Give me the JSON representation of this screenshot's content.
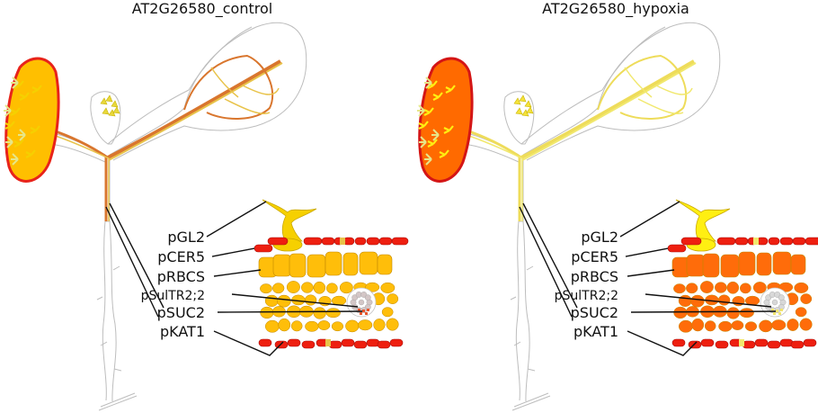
{
  "panels": [
    {
      "title": "AT2G26580_control",
      "colors": {
        "leaf_blade": "#ffbf00",
        "leaf_outline": "#e8231a",
        "vein_main": "#d9762e",
        "vein_secondary": "#e8c34a",
        "bud": "#e8d83a",
        "trichome": "#f6d000",
        "epidermis": "#ee1f10",
        "mesophyll": "#ffbe0a",
        "sulfate": "#d3c6c6",
        "companion": "#e8542a"
      },
      "labels": [
        "pGL2",
        "pCER5",
        "pRBCS",
        "pSulTR2;2",
        "pSUC2",
        "pKAT1"
      ]
    },
    {
      "title": "AT2G26580_hypoxia",
      "colors": {
        "leaf_blade": "#ff6a00",
        "leaf_outline": "#d41515",
        "vein_main": "#eedc5a",
        "vein_secondary": "#f1e86e",
        "bud": "#f4e23a",
        "trichome": "#ffef12",
        "epidermis": "#ee1f10",
        "mesophyll": "#ff6c0a",
        "sulfate": "#d8d8d8",
        "companion": "#f1e46e"
      },
      "labels": [
        "pGL2",
        "pCER5",
        "pRBCS",
        "pSulTR2;2",
        "pSUC2",
        "pKAT1"
      ]
    }
  ]
}
